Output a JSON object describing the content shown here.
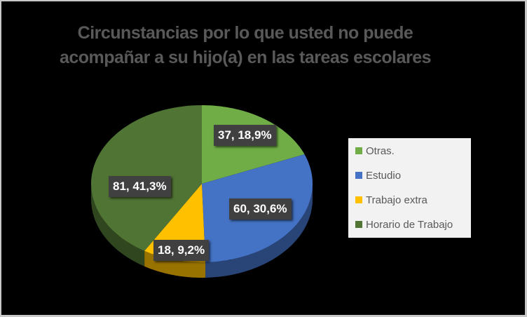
{
  "chart_data": {
    "type": "pie",
    "title": "Circunstancias por lo que usted no puede acompañar a su hijo(a) en las tareas escolares",
    "title_lines": [
      "Circunstancias por lo que usted no puede",
      "acompañar a su hijo(a) en las tareas escolares"
    ],
    "categories": [
      "Otras.",
      "Estudio",
      "Trabajo extra",
      "Horario de Trabajo"
    ],
    "values": [
      37,
      60,
      18,
      81
    ],
    "percentages": [
      18.9,
      30.6,
      9.2,
      41.3
    ],
    "colors": [
      "#70ad47",
      "#4472c4",
      "#ffc000",
      "#507434"
    ],
    "data_labels": [
      "37, 18,9%",
      "60, 30,6%",
      "18, 9,2%",
      "81, 41,3%"
    ],
    "legend_position": "right",
    "style": "3d-pie"
  },
  "legend": {
    "items": [
      {
        "label": "Otras.",
        "color": "#70ad47"
      },
      {
        "label": "Estudio",
        "color": "#4472c4"
      },
      {
        "label": "Trabajo extra",
        "color": "#ffc000"
      },
      {
        "label": "Horario de Trabajo",
        "color": "#507434"
      }
    ]
  }
}
